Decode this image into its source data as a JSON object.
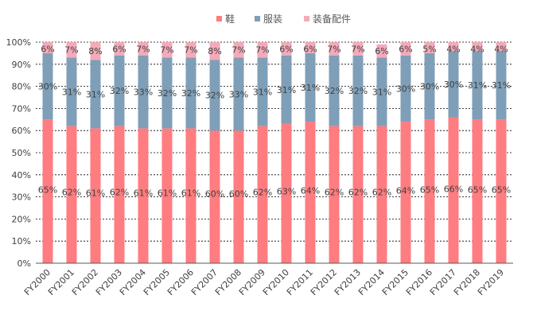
{
  "chart_data": {
    "type": "bar",
    "stacked": true,
    "percent": true,
    "title": "",
    "xlabel": "",
    "ylabel": "",
    "ylim": [
      0,
      100
    ],
    "yticks": [
      "0%",
      "10%",
      "20%",
      "30%",
      "40%",
      "50%",
      "60%",
      "70%",
      "80%",
      "90%",
      "100%"
    ],
    "categories": [
      "FY2000",
      "FY2001",
      "FY2002",
      "FY2003",
      "FY2004",
      "FY2005",
      "FY2006",
      "FY2007",
      "FY2008",
      "FY2009",
      "FY2010",
      "FY2011",
      "FY2012",
      "FY2013",
      "FY2014",
      "FY2015",
      "FY2016",
      "FY2017",
      "FY2018",
      "FY2019"
    ],
    "legend_position": "top-center",
    "series": [
      {
        "name": "鞋",
        "color": "#FF7C80",
        "values": [
          65,
          62,
          61,
          62,
          61,
          61,
          61,
          60,
          60,
          62,
          63,
          64,
          62,
          62,
          62,
          64,
          65,
          66,
          65,
          65
        ]
      },
      {
        "name": "服装",
        "color": "#7F9FB8",
        "values": [
          30,
          31,
          31,
          32,
          33,
          32,
          32,
          32,
          33,
          31,
          31,
          31,
          32,
          32,
          31,
          30,
          30,
          30,
          31,
          31
        ]
      },
      {
        "name": "装备配件",
        "color": "#F4AAB9",
        "values": [
          6,
          7,
          8,
          6,
          7,
          7,
          7,
          8,
          7,
          7,
          6,
          6,
          7,
          7,
          6,
          6,
          5,
          4,
          4,
          4
        ]
      }
    ]
  }
}
